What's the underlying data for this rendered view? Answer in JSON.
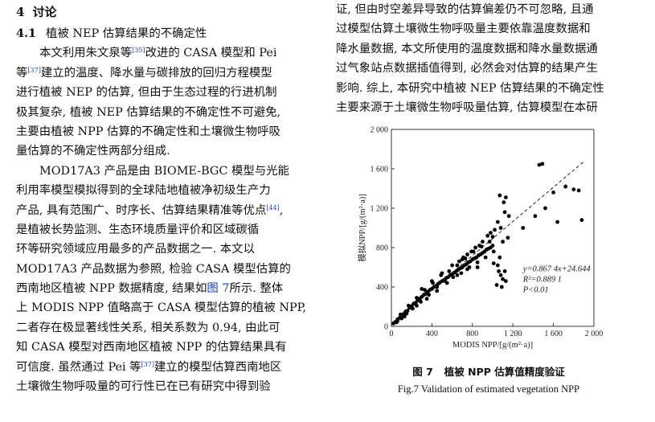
{
  "section": {
    "number": "4",
    "title": "讨论"
  },
  "subsection": {
    "number": "4.1",
    "title": "植被 NEP 估算结果的不确定性"
  },
  "left_lines": [
    [
      "本文利用朱文泉等",
      "[35]",
      "改进的 CASA 模型和 Pei"
    ],
    [
      "等",
      "[37]",
      "建立的温度、降水量与碳排放的回归方程模型"
    ],
    [
      "进行植被 NEP 的估算, 但由于生态过程的行进机制",
      "",
      ""
    ],
    [
      "极其复杂, 植被 NEP 估算结果的不确定性不可避免,",
      "",
      ""
    ],
    [
      "主要由植被 NPP 估算的不确定性和土壤微生物呼吸",
      "",
      ""
    ],
    [
      "量估算的不确定性两部分组成.",
      "",
      ""
    ],
    [
      "MOD17A3 产品是由 BIOME-BGC 模型与光能",
      "",
      ""
    ],
    [
      "利用率模型模拟得到的全球陆地植被净初级生产力",
      "",
      ""
    ],
    [
      "产品, 具有范围广、时序长、估算结果精准等优点",
      "[44]",
      ","
    ],
    [
      "是植被长势监测、生态环境质量评价和区域碳循",
      "",
      ""
    ],
    [
      "环等研究领域应用最多的产品数据之一. 本文以",
      "",
      ""
    ],
    [
      "MOD17A3 产品数据为参照, 检验 CASA 模型估算的",
      "",
      ""
    ],
    [
      "西南地区植被 NPP 数据精度, 结果如",
      "图 7",
      "所示. 整体"
    ],
    [
      "上 MODIS NPP 值略高于 CASA 模型估算的植被 NPP,",
      "",
      ""
    ],
    [
      "二者存在极显著线性关系, 相关系数为 0.94, 由此可",
      "",
      ""
    ],
    [
      "知 CASA 模型对西南地区植被 NPP 的估算结果具有",
      "",
      ""
    ],
    [
      "可信度. 虽然通过 Pei 等",
      "[37]",
      "建立的模型估算西南地区"
    ],
    [
      "土壤微生物呼吸量的可行性已在已有研究中得到验",
      "",
      ""
    ]
  ],
  "right_lines": [
    "证, 但由时空差异导致的估算偏差仍不可忽略, 且通",
    "过模型估算土壤微生物呼吸量主要依靠温度数据和",
    "降水量数据, 本文所使用的温度数据和降水量数据通",
    "过气象站点数据插值得到, 必然会对估算的结果产生",
    "影响. 综上, 本研究中植被 NEP 估算结果的不确定性",
    "主要来源于土壤微生物呼吸量估算, 估算模型在本研"
  ],
  "figure": {
    "number": "图 7",
    "caption_cn": "植被 NPP 估算值精度验证",
    "caption_en": "Fig.7 Validation of estimated vegetation NPP"
  },
  "chart_data": {
    "type": "scatter",
    "xlabel": "MODIS NPP/[g/(m²·a)]",
    "ylabel": "模拟NPP/[g/(m²·a)]",
    "xlim": [
      0,
      2000
    ],
    "ylim": [
      0,
      2000
    ],
    "xticks": [
      "0",
      "400",
      "800",
      "1 200",
      "1 600",
      "2 000"
    ],
    "yticks": [
      "0",
      "400",
      "800",
      "1 200",
      "1 600",
      "2 000"
    ],
    "fit": {
      "slope": 0.8674,
      "intercept": 24.644,
      "style": "dashed"
    },
    "annotations": [
      "y=0.867 4x+24.644",
      "R²=0.889 1",
      "P<0.01"
    ],
    "point_color": "#000000",
    "points": [
      [
        20,
        30
      ],
      [
        40,
        45
      ],
      [
        60,
        70
      ],
      [
        80,
        85
      ],
      [
        100,
        110
      ],
      [
        120,
        125
      ],
      [
        140,
        150
      ],
      [
        160,
        160
      ],
      [
        180,
        190
      ],
      [
        200,
        205
      ],
      [
        220,
        230
      ],
      [
        240,
        240
      ],
      [
        260,
        265
      ],
      [
        280,
        280
      ],
      [
        300,
        300
      ],
      [
        320,
        320
      ],
      [
        340,
        330
      ],
      [
        360,
        350
      ],
      [
        380,
        370
      ],
      [
        400,
        380
      ],
      [
        420,
        400
      ],
      [
        440,
        410
      ],
      [
        460,
        430
      ],
      [
        480,
        445
      ],
      [
        500,
        460
      ],
      [
        520,
        470
      ],
      [
        540,
        490
      ],
      [
        560,
        500
      ],
      [
        580,
        520
      ],
      [
        600,
        530
      ],
      [
        620,
        545
      ],
      [
        640,
        560
      ],
      [
        660,
        575
      ],
      [
        680,
        590
      ],
      [
        700,
        600
      ],
      [
        720,
        620
      ],
      [
        740,
        630
      ],
      [
        760,
        650
      ],
      [
        780,
        660
      ],
      [
        800,
        680
      ],
      [
        820,
        690
      ],
      [
        840,
        700
      ],
      [
        860,
        720
      ],
      [
        880,
        730
      ],
      [
        900,
        745
      ],
      [
        920,
        760
      ],
      [
        940,
        780
      ],
      [
        960,
        790
      ],
      [
        980,
        800
      ],
      [
        1000,
        820
      ],
      [
        50,
        40
      ],
      [
        90,
        120
      ],
      [
        130,
        100
      ],
      [
        170,
        210
      ],
      [
        210,
        180
      ],
      [
        250,
        290
      ],
      [
        290,
        250
      ],
      [
        330,
        370
      ],
      [
        370,
        320
      ],
      [
        410,
        440
      ],
      [
        450,
        400
      ],
      [
        490,
        520
      ],
      [
        530,
        460
      ],
      [
        570,
        560
      ],
      [
        610,
        500
      ],
      [
        650,
        620
      ],
      [
        690,
        540
      ],
      [
        730,
        690
      ],
      [
        770,
        600
      ],
      [
        810,
        760
      ],
      [
        850,
        650
      ],
      [
        890,
        810
      ],
      [
        930,
        700
      ],
      [
        970,
        860
      ],
      [
        1010,
        760
      ],
      [
        300,
        380
      ],
      [
        400,
        460
      ],
      [
        500,
        540
      ],
      [
        600,
        620
      ],
      [
        700,
        680
      ],
      [
        350,
        280
      ],
      [
        450,
        360
      ],
      [
        550,
        440
      ],
      [
        650,
        520
      ],
      [
        750,
        580
      ],
      [
        850,
        600
      ],
      [
        250,
        210
      ],
      [
        150,
        130
      ],
      [
        100,
        80
      ],
      [
        60,
        55
      ],
      [
        1050,
        620
      ],
      [
        1060,
        560
      ],
      [
        1080,
        520
      ],
      [
        1100,
        480
      ],
      [
        1040,
        420
      ],
      [
        1090,
        400
      ],
      [
        1120,
        560
      ],
      [
        1010,
        640
      ],
      [
        1070,
        700
      ],
      [
        1130,
        460
      ],
      [
        1100,
        860
      ],
      [
        1150,
        900
      ],
      [
        1080,
        1000
      ],
      [
        1120,
        1160
      ],
      [
        1110,
        1260
      ],
      [
        1130,
        1310
      ],
      [
        1070,
        1330
      ],
      [
        1160,
        1120
      ],
      [
        1050,
        1060
      ],
      [
        1000,
        910
      ],
      [
        1300,
        1000
      ],
      [
        1420,
        1120
      ],
      [
        1460,
        1640
      ],
      [
        1490,
        1650
      ],
      [
        1520,
        1200
      ],
      [
        1600,
        1360
      ],
      [
        1640,
        1060
      ],
      [
        1720,
        1420
      ],
      [
        1800,
        1390
      ],
      [
        1850,
        1380
      ],
      [
        1880,
        1080
      ],
      [
        900,
        860
      ],
      [
        950,
        920
      ],
      [
        980,
        950
      ],
      [
        1020,
        980
      ],
      [
        870,
        820
      ],
      [
        830,
        800
      ],
      [
        790,
        760
      ],
      [
        750,
        730
      ],
      [
        710,
        700
      ],
      [
        670,
        660
      ]
    ]
  }
}
